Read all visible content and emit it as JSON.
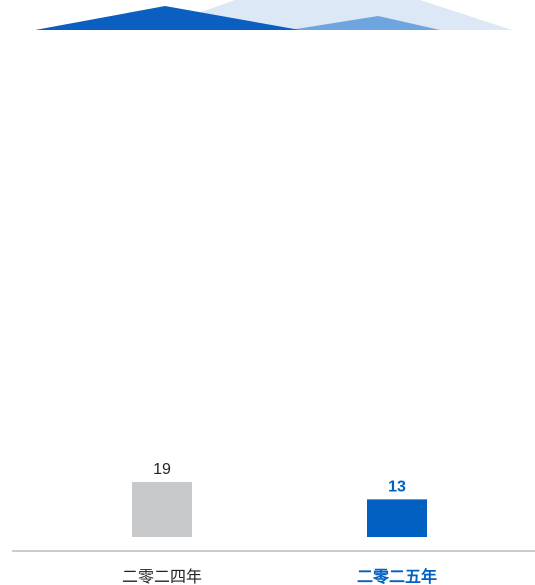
{
  "colors": {
    "header_dark": "#0a5fc0",
    "header_mid": "#6ea5df",
    "header_light": "#dde8f6",
    "bar_default": "#c8c9cb",
    "bar_highlight": "#0160c1",
    "label_default": "#222222",
    "label_highlight": "#0160c1",
    "axis": "#999999"
  },
  "chart_data": {
    "type": "bar",
    "categories": [
      "二零二四年",
      "二零二五年"
    ],
    "values": [
      19,
      13
    ],
    "value_labels": [
      "19",
      "13"
    ],
    "highlight_index": 1,
    "title": "",
    "xlabel": "",
    "ylabel": "",
    "ylim": [
      0,
      19
    ],
    "grid": false,
    "legend": "none"
  }
}
